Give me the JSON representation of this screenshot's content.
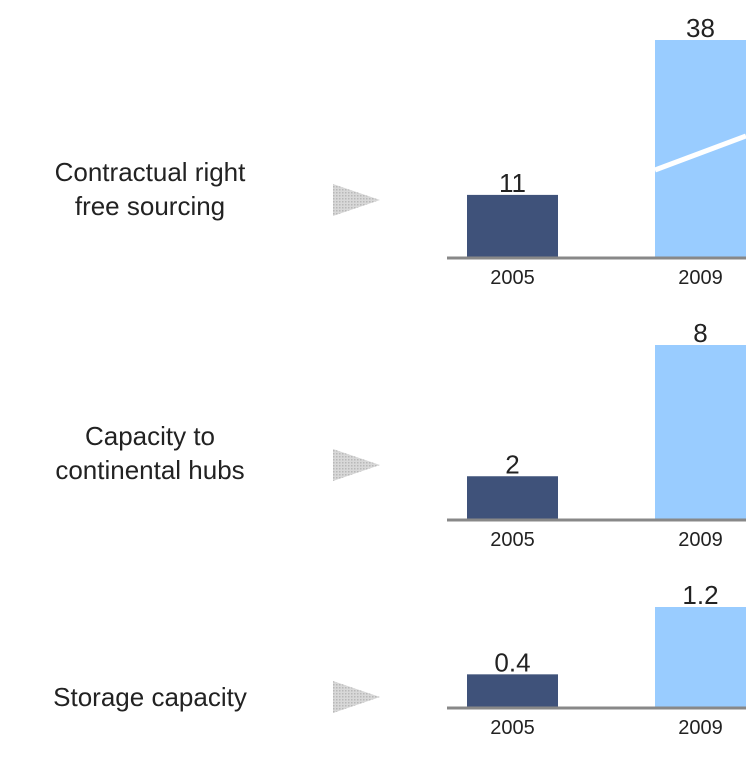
{
  "chart_data": [
    {
      "type": "bar",
      "label": [
        "Contractual right",
        "free sourcing"
      ],
      "categories": [
        "2005",
        "2009"
      ],
      "values": [
        11,
        38
      ],
      "colors": [
        "#3f527a",
        "#99ccff"
      ],
      "axis_break": true
    },
    {
      "type": "bar",
      "label": [
        "Capacity to",
        "continental hubs"
      ],
      "categories": [
        "2005",
        "2009"
      ],
      "values": [
        2,
        8
      ],
      "colors": [
        "#3f527a",
        "#99ccff"
      ]
    },
    {
      "type": "bar",
      "label": [
        "Storage capacity"
      ],
      "categories": [
        "2005",
        "2009"
      ],
      "values": [
        0.4,
        1.2
      ],
      "colors": [
        "#3f527a",
        "#99ccff"
      ]
    }
  ]
}
